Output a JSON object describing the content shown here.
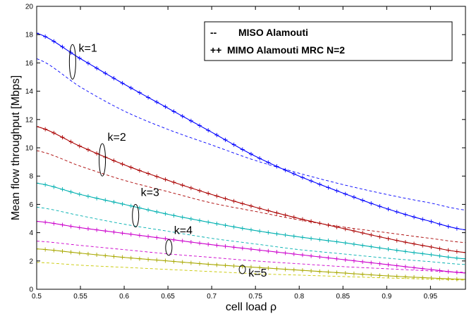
{
  "chart_data": {
    "type": "line",
    "xlabel": "cell load ρ",
    "ylabel": "Mean flow throughput [Mbps]",
    "xlim": [
      0.5,
      0.99
    ],
    "ylim": [
      0,
      20
    ],
    "xticks": [
      0.5,
      0.55,
      0.6,
      0.65,
      0.7,
      0.75,
      0.8,
      0.85,
      0.9,
      0.95
    ],
    "xtick_labels": [
      "0.5",
      "0.55",
      "0.6",
      "0.65",
      "0.7",
      "0.75",
      "0.8",
      "0.85",
      "0.9",
      "0.95"
    ],
    "yticks": [
      0,
      2,
      4,
      6,
      8,
      10,
      12,
      14,
      16,
      18,
      20
    ],
    "ytick_labels": [
      "0",
      "2",
      "4",
      "6",
      "8",
      "10",
      "12",
      "14",
      "16",
      "18",
      "20"
    ],
    "grid": false,
    "legend_position": "top-right",
    "legend": [
      {
        "marker": "--",
        "label": "MISO Alamouti",
        "style": "dashed"
      },
      {
        "marker": "++",
        "label": "MIMO Alamouti MRC N=2",
        "style": "solid-plus"
      }
    ],
    "x": [
      0.5,
      0.55,
      0.6,
      0.65,
      0.7,
      0.75,
      0.8,
      0.85,
      0.9,
      0.95,
      0.99
    ],
    "series": [
      {
        "name": "k=1",
        "style": "dashed",
        "color": "#0000ff",
        "values": [
          16.3,
          14.3,
          12.6,
          11.3,
          10.2,
          9.1,
          8.2,
          7.4,
          6.7,
          6.1,
          5.6
        ]
      },
      {
        "name": "k=1",
        "style": "solid-plus",
        "color": "#0000ff",
        "values": [
          18.1,
          16.3,
          14.5,
          12.8,
          11.1,
          9.4,
          8.0,
          6.8,
          5.7,
          4.8,
          4.2
        ]
      },
      {
        "name": "k=2",
        "style": "dashed",
        "color": "#aa0000",
        "values": [
          9.8,
          8.7,
          7.7,
          6.9,
          6.1,
          5.5,
          4.9,
          4.4,
          4.0,
          3.6,
          3.3
        ]
      },
      {
        "name": "k=2",
        "style": "solid-plus",
        "color": "#aa0000",
        "values": [
          11.5,
          10.1,
          8.8,
          7.7,
          6.7,
          5.8,
          5.0,
          4.3,
          3.6,
          3.0,
          2.6
        ]
      },
      {
        "name": "k=3",
        "style": "dashed",
        "color": "#00b0b0",
        "values": [
          5.8,
          5.2,
          4.6,
          4.1,
          3.6,
          3.2,
          2.8,
          2.5,
          2.2,
          1.95,
          1.75
        ]
      },
      {
        "name": "k=3",
        "style": "solid-plus",
        "color": "#00b0b0",
        "values": [
          7.5,
          6.7,
          6.0,
          5.3,
          4.7,
          4.15,
          3.7,
          3.3,
          2.85,
          2.45,
          2.15
        ]
      },
      {
        "name": "k=4",
        "style": "dashed",
        "color": "#cc00cc",
        "values": [
          3.4,
          3.1,
          2.8,
          2.5,
          2.25,
          2.0,
          1.8,
          1.6,
          1.45,
          1.3,
          1.2
        ]
      },
      {
        "name": "k=4",
        "style": "solid-plus",
        "color": "#cc00cc",
        "values": [
          4.8,
          4.35,
          3.95,
          3.55,
          3.15,
          2.8,
          2.45,
          2.1,
          1.75,
          1.4,
          1.15
        ]
      },
      {
        "name": "k=5",
        "style": "dashed",
        "color": "#c8c800",
        "values": [
          1.9,
          1.7,
          1.55,
          1.4,
          1.25,
          1.1,
          1.0,
          0.9,
          0.8,
          0.72,
          0.65
        ]
      },
      {
        "name": "k=5",
        "style": "solid-plus",
        "color": "#a8a800",
        "values": [
          2.85,
          2.55,
          2.25,
          2.0,
          1.75,
          1.55,
          1.35,
          1.15,
          0.95,
          0.8,
          0.7
        ]
      }
    ],
    "annotations": [
      {
        "text": "k=1",
        "x": 0.548,
        "y": 16.8
      },
      {
        "text": "k=2",
        "x": 0.581,
        "y": 10.5
      },
      {
        "text": "k=3",
        "x": 0.619,
        "y": 6.6
      },
      {
        "text": "k=4",
        "x": 0.657,
        "y": 3.9
      },
      {
        "text": "k=5",
        "x": 0.742,
        "y": 0.9
      }
    ],
    "groupings": [
      {
        "x": 0.541,
        "y_low": 14.85,
        "y_high": 17.3
      },
      {
        "x": 0.575,
        "y_low": 8.0,
        "y_high": 10.3
      },
      {
        "x": 0.613,
        "y_low": 4.4,
        "y_high": 6.0
      },
      {
        "x": 0.651,
        "y_low": 2.4,
        "y_high": 3.5
      },
      {
        "x": 0.735,
        "y_low": 1.1,
        "y_high": 1.7
      }
    ]
  }
}
